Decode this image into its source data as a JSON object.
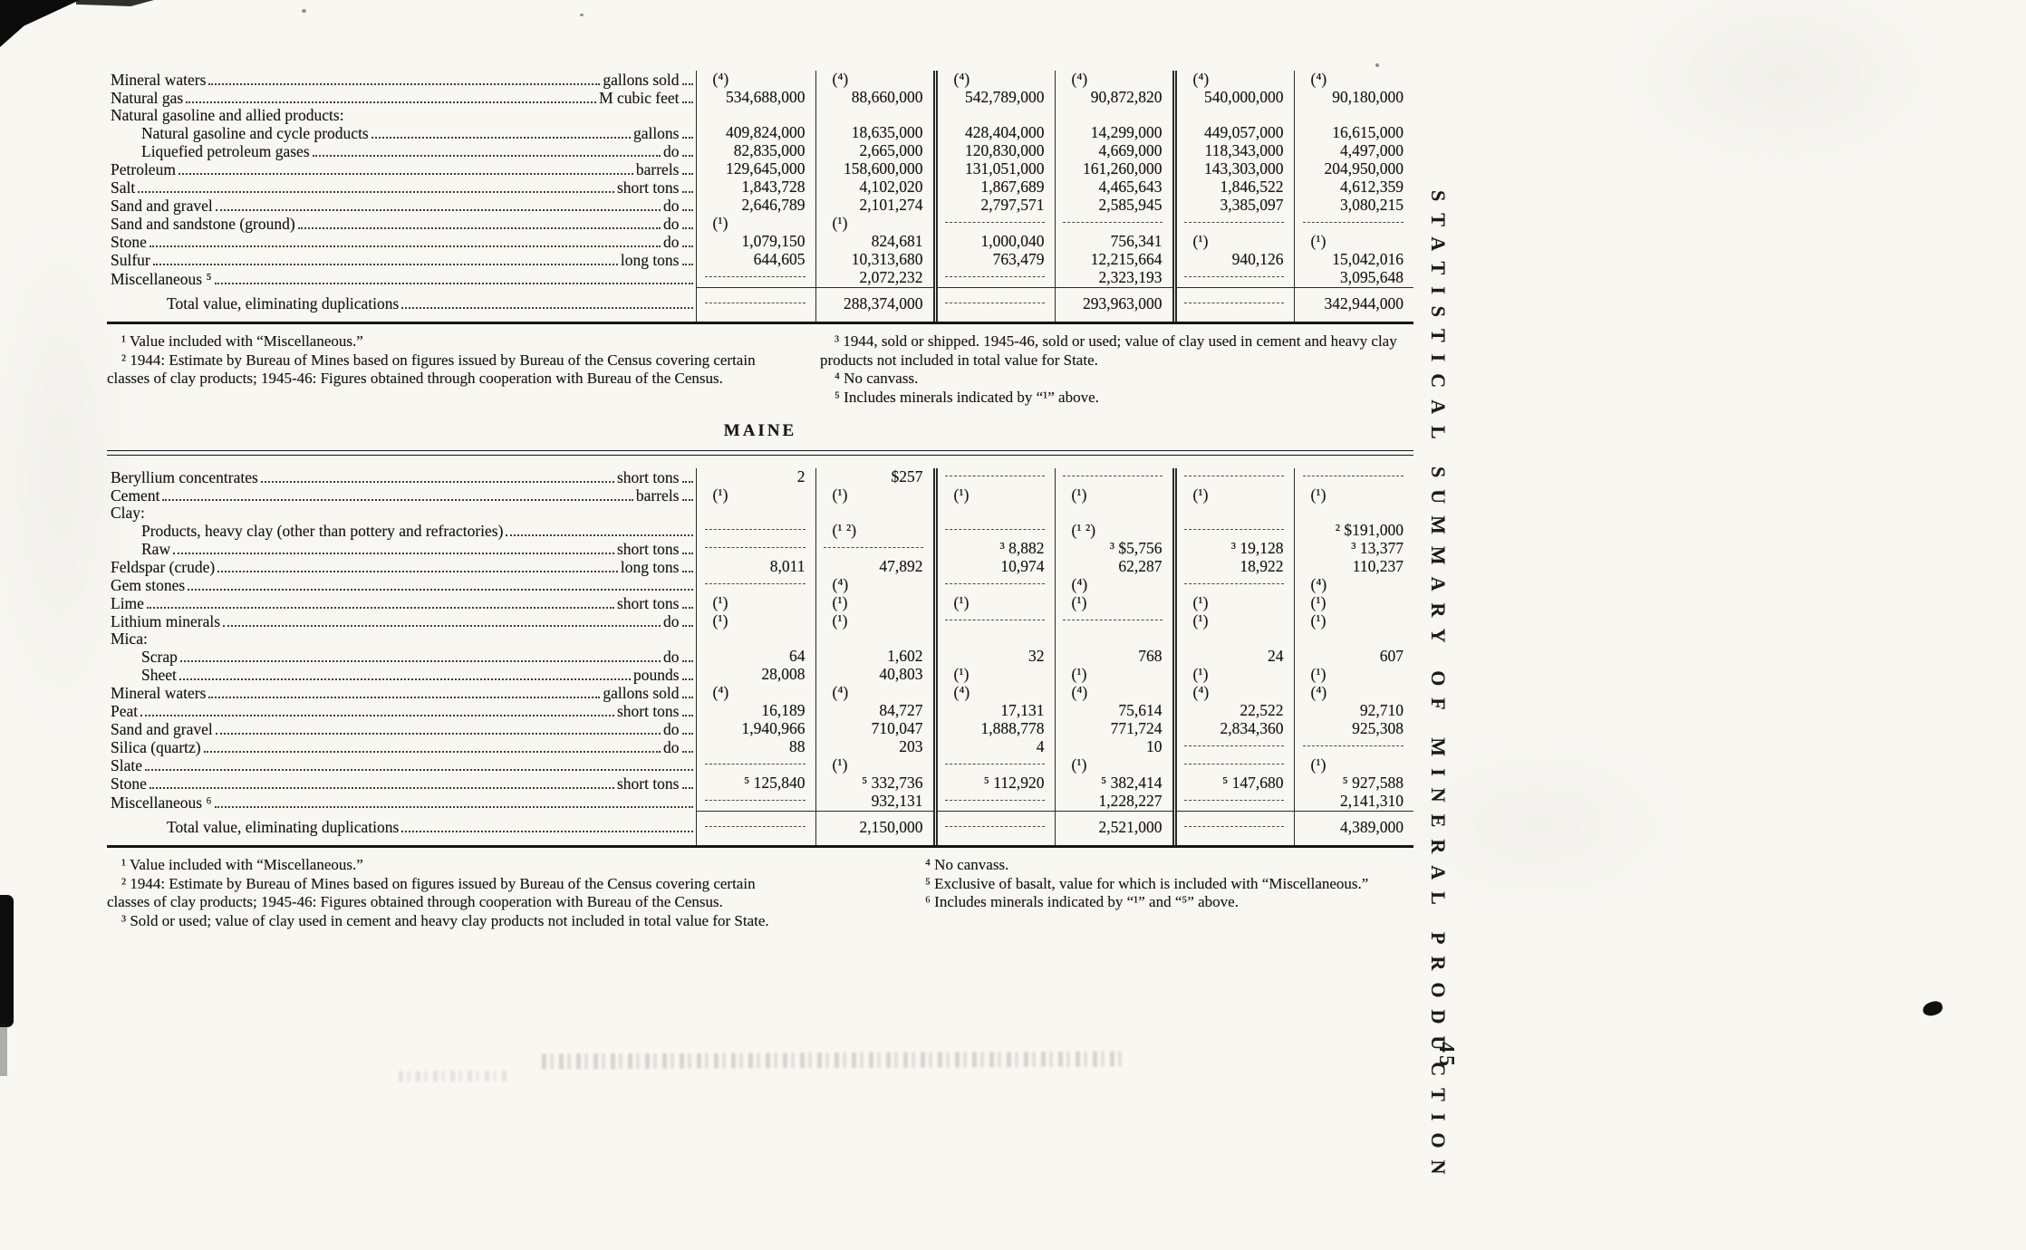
{
  "page": {
    "side_title": "STATISTICAL SUMMARY OF MINERAL PRODUCTION",
    "page_number": "45"
  },
  "table1": {
    "rows": [
      {
        "label": "Mineral waters",
        "unit": "gallons sold",
        "indent": 0,
        "values": [
          "(⁴)",
          "(⁴)",
          "(⁴)",
          "(⁴)",
          "(⁴)",
          "(⁴)"
        ]
      },
      {
        "label": "Natural gas",
        "unit": "M cubic feet",
        "indent": 0,
        "values": [
          "534,688,000",
          "88,660,000",
          "542,789,000",
          "90,872,820",
          "540,000,000",
          "90,180,000"
        ]
      },
      {
        "label": "Natural gasoline and allied products:",
        "header": true,
        "indent": 0,
        "values": [
          "",
          "",
          "",
          "",
          "",
          ""
        ]
      },
      {
        "label": "Natural gasoline and cycle products",
        "unit": "gallons",
        "indent": 1,
        "values": [
          "409,824,000",
          "18,635,000",
          "428,404,000",
          "14,299,000",
          "449,057,000",
          "16,615,000"
        ]
      },
      {
        "label": "Liquefied petroleum gases",
        "unit": "do",
        "indent": 1,
        "values": [
          "82,835,000",
          "2,665,000",
          "120,830,000",
          "4,669,000",
          "118,343,000",
          "4,497,000"
        ]
      },
      {
        "label": "Petroleum",
        "unit": "barrels",
        "indent": 0,
        "values": [
          "129,645,000",
          "158,600,000",
          "131,051,000",
          "161,260,000",
          "143,303,000",
          "204,950,000"
        ]
      },
      {
        "label": "Salt",
        "unit": "short tons",
        "indent": 0,
        "values": [
          "1,843,728",
          "4,102,020",
          "1,867,689",
          "4,465,643",
          "1,846,522",
          "4,612,359"
        ]
      },
      {
        "label": "Sand and gravel",
        "unit": "do",
        "indent": 0,
        "values": [
          "2,646,789",
          "2,101,274",
          "2,797,571",
          "2,585,945",
          "3,385,097",
          "3,080,215"
        ]
      },
      {
        "label": "Sand and sandstone (ground)",
        "unit": "do",
        "indent": 0,
        "values": [
          "(¹)",
          "(¹)",
          "",
          "",
          "",
          ""
        ]
      },
      {
        "label": "Stone",
        "unit": "do",
        "indent": 0,
        "values": [
          "1,079,150",
          "824,681",
          "1,000,040",
          "756,341",
          "(¹)",
          "(¹)"
        ]
      },
      {
        "label": "Sulfur",
        "unit": "long tons",
        "indent": 0,
        "values": [
          "644,605",
          "10,313,680",
          "763,479",
          "12,215,664",
          "940,126",
          "15,042,016"
        ]
      },
      {
        "label": "Miscellaneous ⁵",
        "unit": "",
        "indent": 0,
        "values": [
          "",
          "2,072,232",
          "",
          "2,323,193",
          "",
          "3,095,648"
        ]
      }
    ],
    "total_label": "Total value, eliminating duplications",
    "total_values": [
      "",
      "288,374,000",
      "",
      "293,963,000",
      "",
      "342,944,000"
    ],
    "footnotes_left": [
      "¹ Value included with “Miscellaneous.”",
      "² 1944: Estimate by Bureau of Mines based on figures issued by Bureau of the Census covering certain classes of clay products; 1945-46: Figures obtained through cooperation with Bureau of the Census."
    ],
    "footnotes_right": [
      "³ 1944, sold or shipped.  1945-46, sold or used; value of clay used in cement and heavy clay products not included in total value for State.",
      "⁴ No canvass.",
      "⁵ Includes minerals indicated by “¹” above."
    ]
  },
  "table2": {
    "title": "MAINE",
    "rows": [
      {
        "label": "Beryllium concentrates",
        "unit": "short tons",
        "indent": 0,
        "values": [
          "2",
          "$257",
          "",
          "",
          "",
          ""
        ]
      },
      {
        "label": "Cement",
        "unit": "barrels",
        "indent": 0,
        "values": [
          "(¹)",
          "(¹)",
          "(¹)",
          "(¹)",
          "(¹)",
          "(¹)"
        ]
      },
      {
        "label": "Clay:",
        "header": true,
        "indent": 0,
        "values": [
          "",
          "",
          "",
          "",
          "",
          ""
        ]
      },
      {
        "label": "Products, heavy clay (other than pottery and refractories)",
        "unit": "",
        "indent": 1,
        "values": [
          "",
          "(¹ ²)",
          "",
          "(¹ ²)",
          "",
          "² $191,000"
        ]
      },
      {
        "label": "Raw",
        "unit": "short tons",
        "indent": 1,
        "values": [
          "",
          "",
          "³ 8,882",
          "³ $5,756",
          "³ 19,128",
          "³ 13,377"
        ]
      },
      {
        "label": "Feldspar (crude)",
        "unit": "long tons",
        "indent": 0,
        "values": [
          "8,011",
          "47,892",
          "10,974",
          "62,287",
          "18,922",
          "110,237"
        ]
      },
      {
        "label": "Gem stones",
        "unit": "",
        "indent": 0,
        "values": [
          "",
          "(⁴)",
          "",
          "(⁴)",
          "",
          "(⁴)"
        ]
      },
      {
        "label": "Lime",
        "unit": "short tons",
        "indent": 0,
        "values": [
          "(¹)",
          "(¹)",
          "(¹)",
          "(¹)",
          "(¹)",
          "(¹)"
        ]
      },
      {
        "label": "Lithium minerals",
        "unit": "do",
        "indent": 0,
        "values": [
          "(¹)",
          "(¹)",
          "",
          "",
          "(¹)",
          "(¹)"
        ]
      },
      {
        "label": "Mica:",
        "header": true,
        "indent": 0,
        "values": [
          "",
          "",
          "",
          "",
          "",
          ""
        ]
      },
      {
        "label": "Scrap",
        "unit": "do",
        "indent": 1,
        "values": [
          "64",
          "1,602",
          "32",
          "768",
          "24",
          "607"
        ]
      },
      {
        "label": "Sheet",
        "unit": "pounds",
        "indent": 1,
        "values": [
          "28,008",
          "40,803",
          "(¹)",
          "(¹)",
          "(¹)",
          "(¹)"
        ]
      },
      {
        "label": "Mineral waters",
        "unit": "gallons sold",
        "indent": 0,
        "values": [
          "(⁴)",
          "(⁴)",
          "(⁴)",
          "(⁴)",
          "(⁴)",
          "(⁴)"
        ]
      },
      {
        "label": "Peat",
        "unit": "short tons",
        "indent": 0,
        "values": [
          "16,189",
          "84,727",
          "17,131",
          "75,614",
          "22,522",
          "92,710"
        ]
      },
      {
        "label": "Sand and gravel",
        "unit": "do",
        "indent": 0,
        "values": [
          "1,940,966",
          "710,047",
          "1,888,778",
          "771,724",
          "2,834,360",
          "925,308"
        ]
      },
      {
        "label": "Silica (quartz)",
        "unit": "do",
        "indent": 0,
        "values": [
          "88",
          "203",
          "4",
          "10",
          "",
          ""
        ]
      },
      {
        "label": "Slate",
        "unit": "",
        "indent": 0,
        "values": [
          "",
          "(¹)",
          "",
          "(¹)",
          "",
          "(¹)"
        ]
      },
      {
        "label": "Stone",
        "unit": "short tons",
        "indent": 0,
        "values": [
          "⁵ 125,840",
          "⁵ 332,736",
          "⁵ 112,920",
          "⁵ 382,414",
          "⁵ 147,680",
          "⁵ 927,588"
        ]
      },
      {
        "label": "Miscellaneous ⁶",
        "unit": "",
        "indent": 0,
        "values": [
          "",
          "932,131",
          "",
          "1,228,227",
          "",
          "2,141,310"
        ]
      }
    ],
    "total_label": "Total value, eliminating duplications",
    "total_values": [
      "",
      "2,150,000",
      "",
      "2,521,000",
      "",
      "4,389,000"
    ],
    "footnotes_left": [
      "¹ Value included with “Miscellaneous.”",
      "² 1944: Estimate by Bureau of Mines based on figures issued by Bureau of the Census covering certain classes of clay products; 1945-46: Figures obtained through cooperation with Bureau of the Census.",
      "³ Sold or used; value of clay used in cement and heavy clay products not included in total value for State."
    ],
    "footnotes_right": [
      "⁴ No canvass.",
      "⁵ Exclusive of basalt, value for which is included with “Miscellaneous.”",
      "⁶ Includes minerals indicated by “¹” and “⁵” above."
    ]
  }
}
